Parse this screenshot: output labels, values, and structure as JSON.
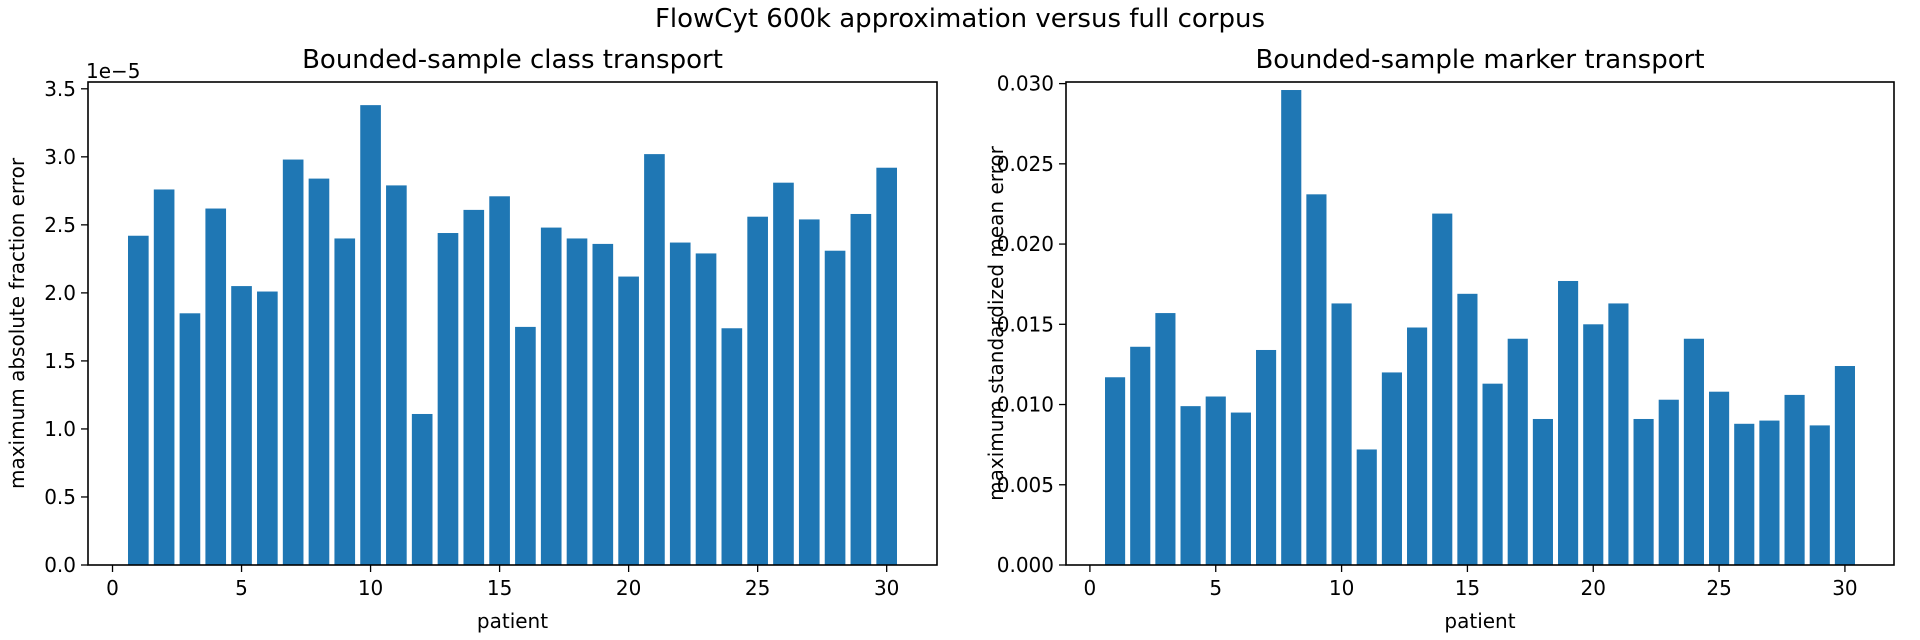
{
  "figure": {
    "suptitle": "FlowCyt 600k approximation versus full corpus"
  },
  "chart_data": [
    {
      "type": "bar",
      "title": "Bounded-sample class transport",
      "xlabel": "patient",
      "ylabel": "maximum absolute fraction error",
      "y_offset_label": "1e−5",
      "bar_color": "#1f77b4",
      "xlim": [
        -0.95,
        31.95
      ],
      "ylim": [
        0,
        3.55
      ],
      "xticks": [
        0,
        5,
        10,
        15,
        20,
        25,
        30
      ],
      "xtick_labels": [
        "0",
        "5",
        "10",
        "15",
        "20",
        "25",
        "30"
      ],
      "yticks": [
        0,
        0.5,
        1.0,
        1.5,
        2.0,
        2.5,
        3.0,
        3.5
      ],
      "ytick_labels": [
        "0.0",
        "0.5",
        "1.0",
        "1.5",
        "2.0",
        "2.5",
        "3.0",
        "3.5"
      ],
      "x": [
        1,
        2,
        3,
        4,
        5,
        6,
        7,
        8,
        9,
        10,
        11,
        12,
        13,
        14,
        15,
        16,
        17,
        18,
        19,
        20,
        21,
        22,
        23,
        24,
        25,
        26,
        27,
        28,
        29,
        30
      ],
      "values": [
        2.42,
        2.76,
        1.85,
        2.62,
        2.05,
        2.01,
        2.98,
        2.84,
        2.4,
        3.38,
        2.79,
        1.11,
        2.44,
        2.61,
        2.71,
        1.75,
        2.48,
        2.4,
        2.36,
        2.12,
        3.02,
        2.37,
        2.29,
        1.74,
        2.56,
        2.81,
        2.54,
        2.31,
        2.58,
        2.92
      ],
      "grid": false
    },
    {
      "type": "bar",
      "title": "Bounded-sample marker transport",
      "xlabel": "patient",
      "ylabel": "maximum standardized mean error",
      "bar_color": "#1f77b4",
      "xlim": [
        -0.95,
        31.95
      ],
      "ylim": [
        0,
        0.0301
      ],
      "xticks": [
        0,
        5,
        10,
        15,
        20,
        25,
        30
      ],
      "xtick_labels": [
        "0",
        "5",
        "10",
        "15",
        "20",
        "25",
        "30"
      ],
      "yticks": [
        0,
        0.005,
        0.01,
        0.015,
        0.02,
        0.025,
        0.03
      ],
      "ytick_labels": [
        "0.000",
        "0.005",
        "0.010",
        "0.015",
        "0.020",
        "0.025",
        "0.030"
      ],
      "x": [
        1,
        2,
        3,
        4,
        5,
        6,
        7,
        8,
        9,
        10,
        11,
        12,
        13,
        14,
        15,
        16,
        17,
        18,
        19,
        20,
        21,
        22,
        23,
        24,
        25,
        26,
        27,
        28,
        29,
        30
      ],
      "values": [
        0.0117,
        0.0136,
        0.0157,
        0.0099,
        0.0105,
        0.0095,
        0.0134,
        0.0296,
        0.0231,
        0.0163,
        0.0072,
        0.012,
        0.0148,
        0.0219,
        0.0169,
        0.0113,
        0.0141,
        0.0091,
        0.0177,
        0.015,
        0.0163,
        0.0091,
        0.0103,
        0.0141,
        0.0108,
        0.0088,
        0.009,
        0.0106,
        0.0087,
        0.0124
      ],
      "grid": false
    }
  ]
}
